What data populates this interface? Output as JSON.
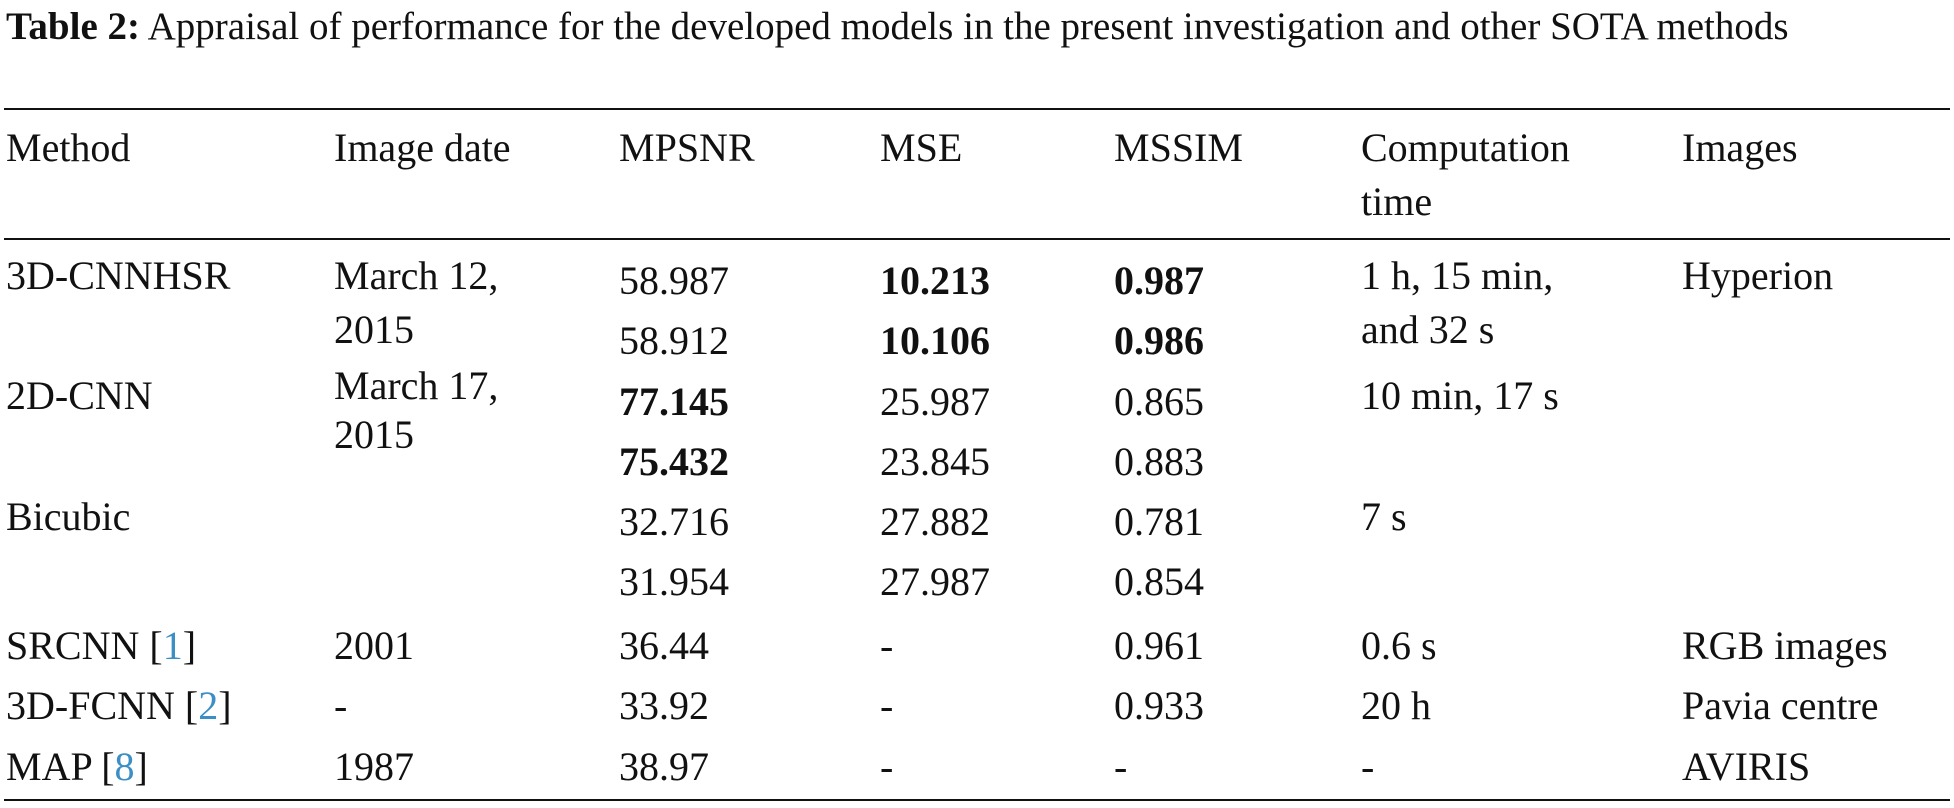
{
  "caption": {
    "label": "Table 2:",
    "text": "Appraisal of performance for the developed models in the present investigation and other SOTA methods"
  },
  "table": {
    "headers": {
      "method": "Method",
      "image_date": "Image date",
      "mpsnr": "MPSNR",
      "mse": "MSE",
      "mssim": "MSSIM",
      "computation_time_line1": "Computation",
      "computation_time_line2": "time",
      "images": "Images"
    },
    "groups": [
      {
        "method": "3D-CNNHSR",
        "image_date_line1": "March 12,",
        "image_date_line2": "2015",
        "computation_time_line1": "1 h, 15 min,",
        "computation_time_line2": "and 32 s",
        "images": "Hyperion",
        "rows": [
          {
            "mpsnr": "58.987",
            "mse": "10.213",
            "mssim": "0.987"
          },
          {
            "mpsnr": "58.912",
            "mse": "10.106",
            "mssim": "0.986"
          }
        ]
      },
      {
        "method": "2D-CNN",
        "image_date_line1": "March 17,",
        "image_date_line2": "2015",
        "computation_time": "10 min, 17 s",
        "rows": [
          {
            "mpsnr": "77.145",
            "mse": "25.987",
            "mssim": "0.865"
          },
          {
            "mpsnr": "75.432",
            "mse": "23.845",
            "mssim": "0.883"
          }
        ]
      },
      {
        "method": "Bicubic",
        "computation_time": "7 s",
        "rows": [
          {
            "mpsnr": "32.716",
            "mse": "27.882",
            "mssim": "0.781"
          },
          {
            "mpsnr": "31.954",
            "mse": "27.987",
            "mssim": "0.854"
          }
        ]
      },
      {
        "method": "SRCNN [",
        "ref": "1",
        "method_close": "]",
        "image_date": "2001",
        "mpsnr": "36.44",
        "mse": "-",
        "mssim": "0.961",
        "computation_time": "0.6 s",
        "images": "RGB images"
      },
      {
        "method": "3D-FCNN [",
        "ref": "2",
        "method_close": "]",
        "image_date": "-",
        "mpsnr": "33.92",
        "mse": "-",
        "mssim": "0.933",
        "computation_time": "20 h",
        "images": "Pavia centre"
      },
      {
        "method": "MAP [",
        "ref": "8",
        "method_close": "]",
        "image_date": "1987",
        "mpsnr": "38.97",
        "mse": "-",
        "mssim": "-",
        "computation_time": "-",
        "images": "AVIRIS"
      }
    ]
  }
}
